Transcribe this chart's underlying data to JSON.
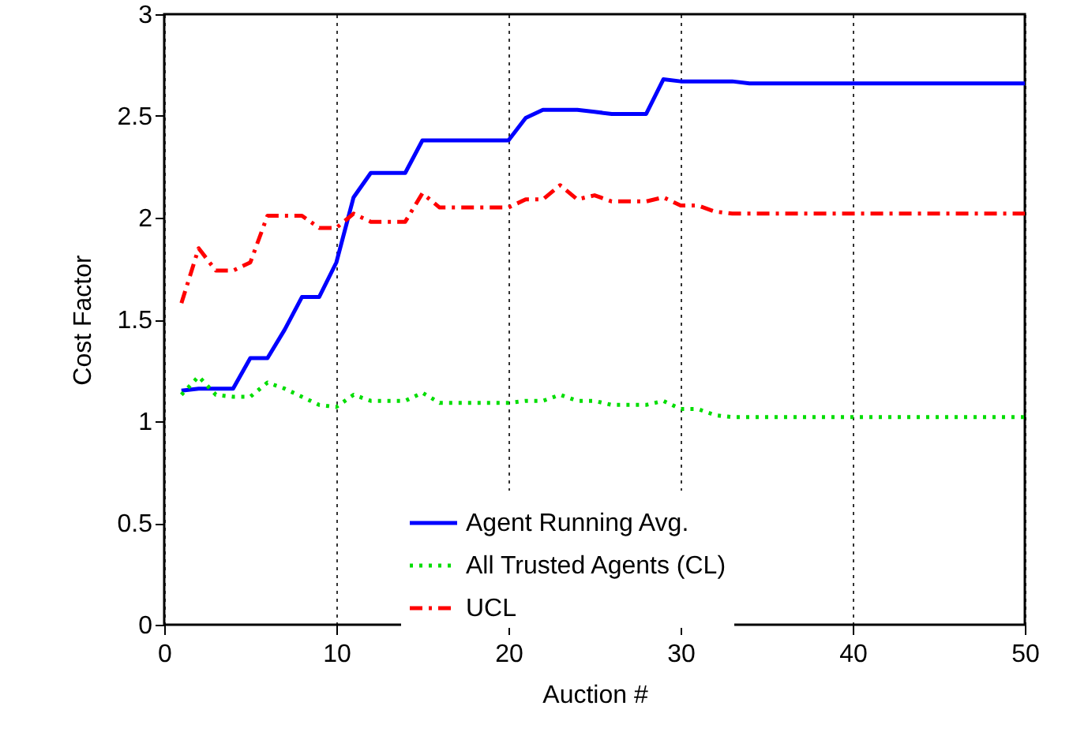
{
  "chart_data": {
    "type": "line",
    "xlabel": "Auction #",
    "ylabel": "Cost Factor",
    "x": [
      1,
      2,
      3,
      4,
      5,
      6,
      7,
      8,
      9,
      10,
      11,
      12,
      13,
      14,
      15,
      16,
      17,
      18,
      19,
      20,
      21,
      22,
      23,
      24,
      25,
      26,
      27,
      28,
      29,
      30,
      31,
      32,
      33,
      34,
      35,
      36,
      37,
      38,
      39,
      40,
      41,
      42,
      43,
      44,
      45,
      46,
      47,
      48,
      49,
      50
    ],
    "series": [
      {
        "name": "Agent Running Avg.",
        "color": "#0000ff",
        "line_style": "solid",
        "values": [
          1.15,
          1.16,
          1.16,
          1.16,
          1.31,
          1.31,
          1.45,
          1.61,
          1.61,
          1.78,
          2.1,
          2.22,
          2.22,
          2.22,
          2.38,
          2.38,
          2.38,
          2.38,
          2.38,
          2.38,
          2.49,
          2.53,
          2.53,
          2.53,
          2.52,
          2.51,
          2.51,
          2.51,
          2.68,
          2.67,
          2.67,
          2.67,
          2.67,
          2.66,
          2.66,
          2.66,
          2.66,
          2.66,
          2.66,
          2.66,
          2.66,
          2.66,
          2.66,
          2.66,
          2.66,
          2.66,
          2.66,
          2.66,
          2.66,
          2.66
        ]
      },
      {
        "name": "All Trusted Agents (CL)",
        "color": "#00dd00",
        "line_style": "dotted",
        "values": [
          1.13,
          1.22,
          1.13,
          1.12,
          1.12,
          1.19,
          1.16,
          1.12,
          1.08,
          1.07,
          1.13,
          1.1,
          1.1,
          1.1,
          1.14,
          1.09,
          1.09,
          1.09,
          1.09,
          1.09,
          1.1,
          1.1,
          1.13,
          1.1,
          1.1,
          1.08,
          1.08,
          1.08,
          1.1,
          1.06,
          1.06,
          1.03,
          1.02,
          1.02,
          1.02,
          1.02,
          1.02,
          1.02,
          1.02,
          1.02,
          1.02,
          1.02,
          1.02,
          1.02,
          1.02,
          1.02,
          1.02,
          1.02,
          1.02,
          1.02
        ]
      },
      {
        "name": "UCL",
        "color": "#ff0000",
        "line_style": "dashdot",
        "values": [
          1.58,
          1.85,
          1.74,
          1.74,
          1.78,
          2.01,
          2.01,
          2.01,
          1.95,
          1.95,
          2.02,
          1.98,
          1.98,
          1.98,
          2.12,
          2.05,
          2.05,
          2.05,
          2.05,
          2.05,
          2.09,
          2.09,
          2.16,
          2.09,
          2.11,
          2.08,
          2.08,
          2.08,
          2.1,
          2.06,
          2.06,
          2.03,
          2.02,
          2.02,
          2.02,
          2.02,
          2.02,
          2.02,
          2.02,
          2.02,
          2.02,
          2.02,
          2.02,
          2.02,
          2.02,
          2.02,
          2.02,
          2.02,
          2.02,
          2.02
        ]
      }
    ],
    "xlim": [
      0,
      50
    ],
    "xticks": [
      0,
      10,
      20,
      30,
      40,
      50
    ],
    "ylim": [
      0,
      3
    ],
    "yticks": [
      0,
      0.5,
      1,
      1.5,
      2,
      2.5,
      3
    ],
    "grid": "x",
    "legend": "bottom",
    "marker": "none"
  }
}
